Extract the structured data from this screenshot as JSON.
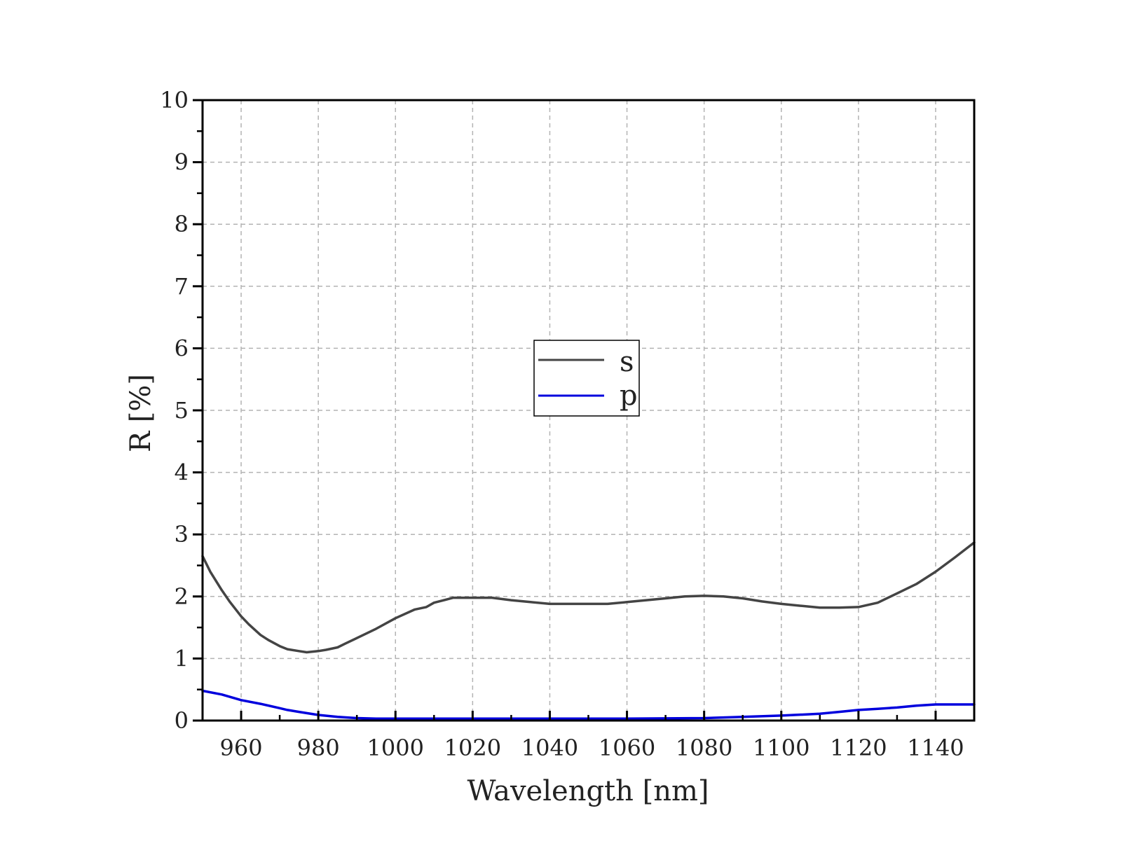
{
  "chart_data": {
    "type": "line",
    "title": "",
    "xlabel": "Wavelength [nm]",
    "ylabel": "R [%]",
    "xlim": [
      950,
      1150
    ],
    "ylim": [
      0,
      10
    ],
    "xticks": [
      960,
      980,
      1000,
      1020,
      1040,
      1060,
      1080,
      1100,
      1120,
      1140
    ],
    "xtick_labels": [
      "960",
      "980",
      "1000",
      "1020",
      "1040",
      "1060",
      "1080",
      "1100",
      "1120",
      "1140"
    ],
    "yticks": [
      0,
      1,
      2,
      3,
      4,
      5,
      6,
      7,
      8,
      9,
      10
    ],
    "ytick_labels": [
      "0",
      "1",
      "2",
      "3",
      "4",
      "5",
      "6",
      "7",
      "8",
      "9",
      "10"
    ],
    "grid": true,
    "legend_position": "center",
    "series": [
      {
        "name": "s",
        "color": "#444444",
        "x": [
          950,
          952,
          955,
          957,
          960,
          962,
          965,
          967,
          970,
          972,
          975,
          977,
          980,
          982,
          985,
          987,
          990,
          995,
          1000,
          1005,
          1008,
          1010,
          1015,
          1020,
          1025,
          1030,
          1035,
          1040,
          1045,
          1050,
          1055,
          1060,
          1065,
          1070,
          1075,
          1080,
          1085,
          1090,
          1095,
          1100,
          1105,
          1110,
          1115,
          1120,
          1125,
          1130,
          1135,
          1140,
          1145,
          1150
        ],
        "y": [
          2.65,
          2.4,
          2.1,
          1.92,
          1.68,
          1.55,
          1.38,
          1.3,
          1.2,
          1.15,
          1.12,
          1.1,
          1.12,
          1.14,
          1.18,
          1.24,
          1.33,
          1.48,
          1.65,
          1.79,
          1.83,
          1.9,
          1.98,
          1.98,
          1.98,
          1.94,
          1.91,
          1.88,
          1.88,
          1.88,
          1.88,
          1.91,
          1.94,
          1.97,
          2.0,
          2.01,
          2.0,
          1.97,
          1.92,
          1.88,
          1.85,
          1.82,
          1.82,
          1.83,
          1.9,
          2.05,
          2.2,
          2.4,
          2.63,
          2.87
        ]
      },
      {
        "name": "p",
        "color": "#0000dd",
        "x": [
          950,
          955,
          960,
          965,
          970,
          972,
          975,
          980,
          985,
          990,
          995,
          1000,
          1010,
          1020,
          1040,
          1060,
          1080,
          1090,
          1100,
          1110,
          1115,
          1120,
          1125,
          1130,
          1135,
          1140,
          1145,
          1150
        ],
        "y": [
          0.48,
          0.42,
          0.33,
          0.27,
          0.2,
          0.17,
          0.14,
          0.09,
          0.06,
          0.04,
          0.03,
          0.03,
          0.03,
          0.03,
          0.03,
          0.03,
          0.04,
          0.06,
          0.08,
          0.11,
          0.14,
          0.17,
          0.19,
          0.21,
          0.24,
          0.26,
          0.26,
          0.26
        ]
      }
    ]
  }
}
